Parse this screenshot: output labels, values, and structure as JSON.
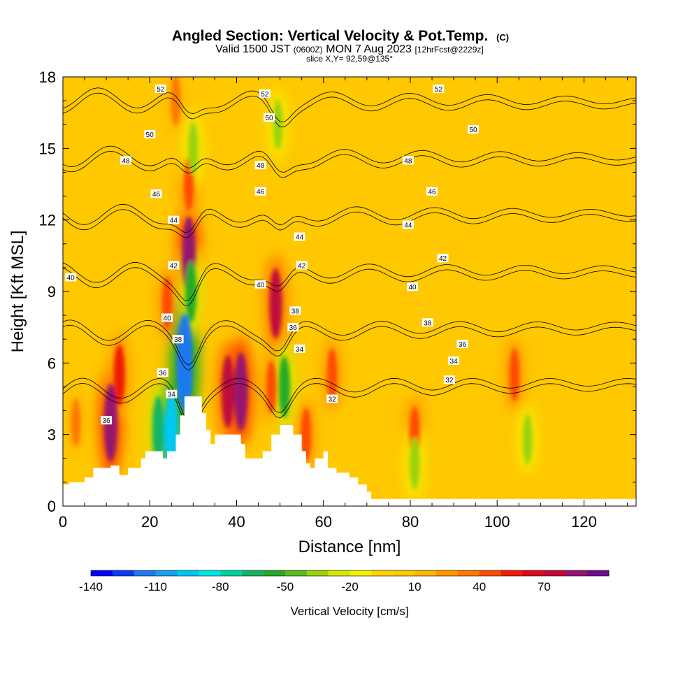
{
  "title": {
    "main": "Angled Section: Vertical Velocity & Pot.Temp.",
    "main_suffix": "(C)",
    "valid_prefix": "Valid 1500 JST",
    "valid_utc": "(0600Z)",
    "valid_date": "MON 7 Aug 2023",
    "forecast": "[12hrFcst@2229z]",
    "slice": "slice X,Y= 92,59@135°"
  },
  "chart_data": {
    "type": "heatmap",
    "xlabel": "Distance [nm]",
    "ylabel": "Height [Kft MSL]",
    "xlim": [
      0,
      132
    ],
    "ylim": [
      0,
      18
    ],
    "x_ticks": [
      0,
      20,
      40,
      60,
      80,
      100,
      120
    ],
    "x_tick_labels": [
      "0",
      "20",
      "40",
      "60",
      "80",
      "100",
      "120"
    ],
    "y_ticks": [
      0,
      3,
      6,
      9,
      12,
      15,
      18
    ],
    "y_tick_labels": [
      "0",
      "3",
      "6",
      "9",
      "12",
      "15",
      "18"
    ],
    "colorbar": {
      "label": "Vertical Velocity [cm/s]",
      "min": -140,
      "max": 90,
      "step": 10,
      "tick_values": [
        -140,
        -110,
        -80,
        -50,
        -20,
        10,
        40,
        70
      ],
      "tick_labels": [
        "-140",
        "-110",
        "-80",
        "-50",
        "-20",
        "10",
        "40",
        "70"
      ],
      "colors": [
        "#0000ff",
        "#0a3cf5",
        "#1f78f0",
        "#1aa0f0",
        "#00c8f0",
        "#00e6e6",
        "#00d2a0",
        "#14b464",
        "#28aa28",
        "#5aba1e",
        "#9ad20f",
        "#d2e800",
        "#f5f000",
        "#ffd200",
        "#ffc800",
        "#ffb400",
        "#ff9600",
        "#ff7800",
        "#ff4b00",
        "#f01e00",
        "#dc0a1e",
        "#be0a3c",
        "#96146e",
        "#6e0a8c"
      ]
    },
    "background_color": "#ffc800",
    "velocity_features": [
      {
        "x": 11,
        "y": 3.5,
        "value": 85
      },
      {
        "x": 13,
        "y": 5.5,
        "value": 55
      },
      {
        "x": 3,
        "y": 3.5,
        "value": 30
      },
      {
        "x": 29,
        "y": 10.5,
        "value": 85
      },
      {
        "x": 29,
        "y": 13.5,
        "value": 40
      },
      {
        "x": 26,
        "y": 17.0,
        "value": 35
      },
      {
        "x": 24,
        "y": 8.5,
        "value": 40
      },
      {
        "x": 38,
        "y": 4.8,
        "value": 75
      },
      {
        "x": 41,
        "y": 4.8,
        "value": 85
      },
      {
        "x": 49,
        "y": 8.5,
        "value": 70
      },
      {
        "x": 48,
        "y": 5.0,
        "value": 40
      },
      {
        "x": 56,
        "y": 3.0,
        "value": 40
      },
      {
        "x": 62,
        "y": 5.5,
        "value": 40
      },
      {
        "x": 81,
        "y": 3.0,
        "value": 45
      },
      {
        "x": 104,
        "y": 5.5,
        "value": 40
      },
      {
        "x": 22,
        "y": 3.2,
        "value": -65
      },
      {
        "x": 25,
        "y": 3.0,
        "value": -95
      },
      {
        "x": 28,
        "y": 6.0,
        "value": -120
      },
      {
        "x": 29.5,
        "y": 9.0,
        "value": -55
      },
      {
        "x": 30,
        "y": 15.0,
        "value": -40
      },
      {
        "x": 49.5,
        "y": 16.0,
        "value": -35
      },
      {
        "x": 51,
        "y": 5.0,
        "value": -55
      },
      {
        "x": 81,
        "y": 1.8,
        "value": -40
      },
      {
        "x": 107,
        "y": 2.8,
        "value": -35
      }
    ],
    "theta_contours": {
      "levels": [
        32,
        34,
        36,
        38,
        40,
        42,
        44,
        46,
        48,
        50,
        52
      ],
      "labels": [
        {
          "text": "36",
          "x": 10,
          "y": 3.6
        },
        {
          "text": "34",
          "x": 25,
          "y": 4.7
        },
        {
          "text": "36",
          "x": 23,
          "y": 5.6
        },
        {
          "text": "38",
          "x": 26.5,
          "y": 7.0
        },
        {
          "text": "40",
          "x": 24,
          "y": 7.9
        },
        {
          "text": "42",
          "x": 25.5,
          "y": 10.1
        },
        {
          "text": "44",
          "x": 25.5,
          "y": 12.0
        },
        {
          "text": "46",
          "x": 21.5,
          "y": 13.1
        },
        {
          "text": "48",
          "x": 14.5,
          "y": 14.5
        },
        {
          "text": "50",
          "x": 20,
          "y": 15.6
        },
        {
          "text": "52",
          "x": 22.5,
          "y": 17.5
        },
        {
          "text": "40",
          "x": 1.8,
          "y": 9.6
        },
        {
          "text": "52",
          "x": 46.5,
          "y": 17.3
        },
        {
          "text": "50",
          "x": 47.5,
          "y": 16.3
        },
        {
          "text": "48",
          "x": 45.5,
          "y": 14.3
        },
        {
          "text": "46",
          "x": 45.5,
          "y": 13.2
        },
        {
          "text": "44",
          "x": 54.5,
          "y": 11.3
        },
        {
          "text": "42",
          "x": 55,
          "y": 10.1
        },
        {
          "text": "40",
          "x": 45.5,
          "y": 9.3
        },
        {
          "text": "38",
          "x": 53.5,
          "y": 8.2
        },
        {
          "text": "36",
          "x": 53,
          "y": 7.5
        },
        {
          "text": "34",
          "x": 54.5,
          "y": 6.6
        },
        {
          "text": "32",
          "x": 62,
          "y": 4.5
        },
        {
          "text": "52",
          "x": 86.5,
          "y": 17.5
        },
        {
          "text": "50",
          "x": 94.5,
          "y": 15.8
        },
        {
          "text": "48",
          "x": 79.5,
          "y": 14.5
        },
        {
          "text": "46",
          "x": 85,
          "y": 13.2
        },
        {
          "text": "44",
          "x": 79.5,
          "y": 11.8
        },
        {
          "text": "42",
          "x": 87.5,
          "y": 10.4
        },
        {
          "text": "40",
          "x": 80.5,
          "y": 9.2
        },
        {
          "text": "38",
          "x": 84,
          "y": 7.7
        },
        {
          "text": "36",
          "x": 92,
          "y": 6.8
        },
        {
          "text": "34",
          "x": 90,
          "y": 6.1
        },
        {
          "text": "32",
          "x": 89,
          "y": 5.3
        }
      ]
    },
    "terrain": [
      [
        0,
        0.9
      ],
      [
        1.5,
        1.0
      ],
      [
        5,
        1.2
      ],
      [
        7,
        1.6
      ],
      [
        11,
        1.7
      ],
      [
        13,
        1.3
      ],
      [
        15,
        1.6
      ],
      [
        18,
        2.0
      ],
      [
        19,
        2.3
      ],
      [
        22,
        2.3
      ],
      [
        23,
        2.0
      ],
      [
        24,
        2.3
      ],
      [
        26,
        3.0
      ],
      [
        27,
        3.8
      ],
      [
        28,
        4.6
      ],
      [
        31,
        4.6
      ],
      [
        32,
        3.9
      ],
      [
        33,
        3.2
      ],
      [
        34,
        2.6
      ],
      [
        35,
        3.0
      ],
      [
        39,
        3.0
      ],
      [
        41,
        2.6
      ],
      [
        42,
        2.0
      ],
      [
        45,
        2.0
      ],
      [
        46,
        2.3
      ],
      [
        48,
        3.0
      ],
      [
        50,
        3.4
      ],
      [
        53,
        3.0
      ],
      [
        55,
        2.3
      ],
      [
        56,
        1.8
      ],
      [
        57,
        1.6
      ],
      [
        58,
        2.0
      ],
      [
        60,
        2.3
      ],
      [
        61,
        1.6
      ],
      [
        63,
        1.4
      ],
      [
        66,
        1.2
      ],
      [
        68,
        0.9
      ],
      [
        70,
        0.6
      ],
      [
        71,
        0.3
      ],
      [
        132,
        0.3
      ]
    ]
  }
}
